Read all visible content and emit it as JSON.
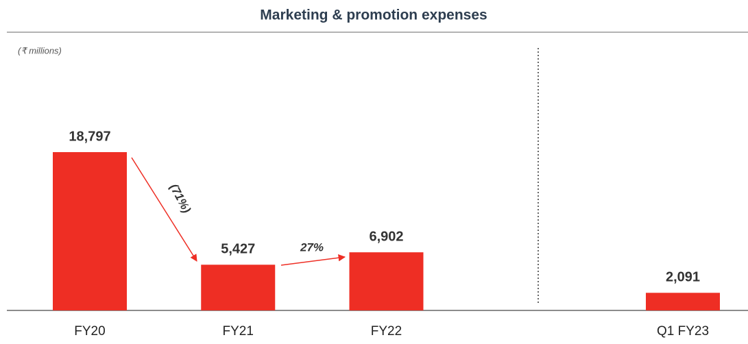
{
  "chart_data": {
    "type": "bar",
    "title": "Marketing & promotion expenses",
    "unit_label": "(₹ millions)",
    "categories": [
      "FY20",
      "FY21",
      "FY22",
      "Q1 FY23"
    ],
    "values": [
      18797,
      5427,
      6902,
      2091
    ],
    "value_labels": [
      "18,797",
      "5,427",
      "6,902",
      "2,091"
    ],
    "color": "#ee2e24",
    "annotations": [
      "(71%)",
      "27%"
    ]
  }
}
